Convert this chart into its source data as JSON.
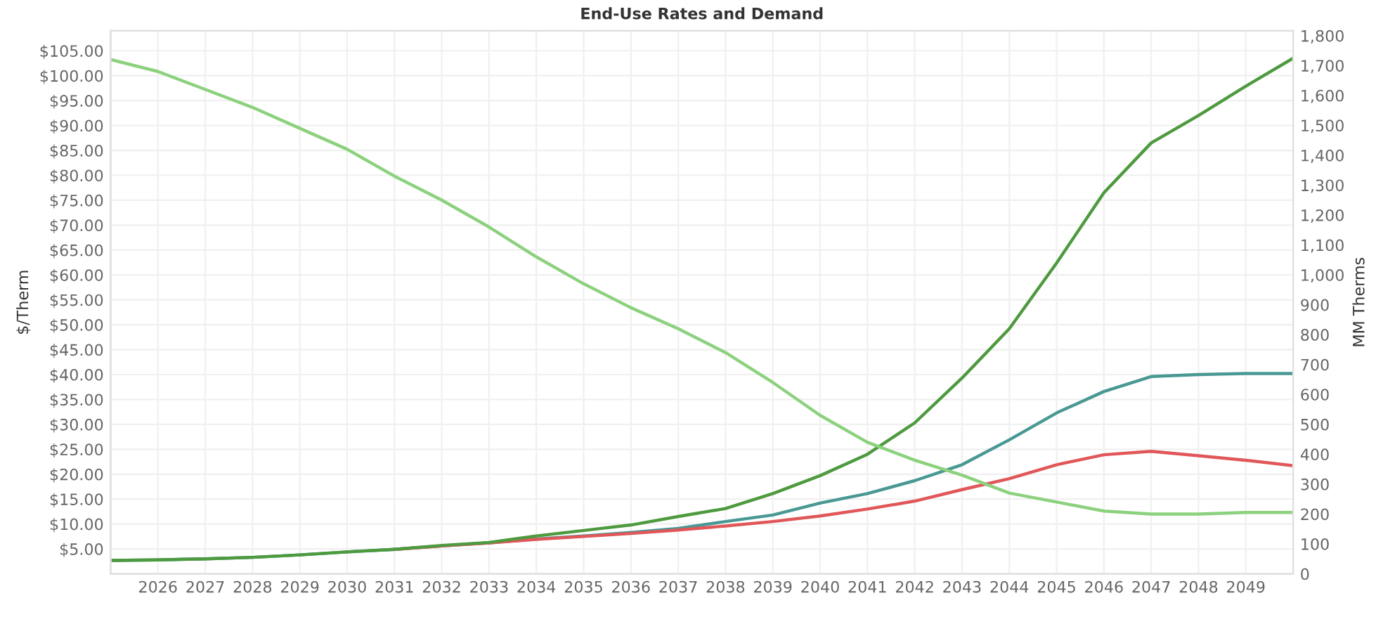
{
  "chart_data": {
    "type": "line",
    "title": "End-Use Rates and Demand",
    "ylabel": "$/Therm",
    "y2label": "MM Therms",
    "x": [
      2025,
      2026,
      2027,
      2028,
      2029,
      2030,
      2031,
      2032,
      2033,
      2034,
      2035,
      2036,
      2037,
      2038,
      2039,
      2040,
      2041,
      2042,
      2043,
      2044,
      2045,
      2046,
      2047,
      2048,
      2049,
      2050
    ],
    "xlim": [
      2025,
      2050
    ],
    "xticks": [
      2026,
      2027,
      2028,
      2029,
      2030,
      2031,
      2032,
      2033,
      2034,
      2035,
      2036,
      2037,
      2038,
      2039,
      2040,
      2041,
      2042,
      2043,
      2044,
      2045,
      2046,
      2047,
      2048,
      2049
    ],
    "ylim": [
      0,
      109
    ],
    "yticks": [
      {
        "value": 5,
        "label": "$5.00"
      },
      {
        "value": 10,
        "label": "$10.00"
      },
      {
        "value": 15,
        "label": "$15.00"
      },
      {
        "value": 20,
        "label": "$20.00"
      },
      {
        "value": 25,
        "label": "$25.00"
      },
      {
        "value": 30,
        "label": "$30.00"
      },
      {
        "value": 35,
        "label": "$35.00"
      },
      {
        "value": 40,
        "label": "$40.00"
      },
      {
        "value": 45,
        "label": "$45.00"
      },
      {
        "value": 50,
        "label": "$50.00"
      },
      {
        "value": 55,
        "label": "$55.00"
      },
      {
        "value": 60,
        "label": "$60.00"
      },
      {
        "value": 65,
        "label": "$65.00"
      },
      {
        "value": 70,
        "label": "$70.00"
      },
      {
        "value": 75,
        "label": "$75.00"
      },
      {
        "value": 80,
        "label": "$80.00"
      },
      {
        "value": 85,
        "label": "$85.00"
      },
      {
        "value": 90,
        "label": "$90.00"
      },
      {
        "value": 95,
        "label": "$95.00"
      },
      {
        "value": 100,
        "label": "$100.00"
      },
      {
        "value": 105,
        "label": "$105.00"
      }
    ],
    "y2lim": [
      0,
      1816
    ],
    "y2ticks": [
      0,
      100,
      200,
      300,
      400,
      500,
      600,
      700,
      800,
      900,
      {
        "value": 1000,
        "label": "1,000"
      },
      {
        "value": 1100,
        "label": "1,100"
      },
      {
        "value": 1200,
        "label": "1,200"
      },
      {
        "value": 1300,
        "label": "1,300"
      },
      {
        "value": 1400,
        "label": "1,400"
      },
      {
        "value": 1500,
        "label": "1,500"
      },
      {
        "value": 1600,
        "label": "1,600"
      },
      {
        "value": 1700,
        "label": "1,700"
      },
      {
        "value": 1800,
        "label": "1,800"
      }
    ],
    "grid": true,
    "series": [
      {
        "color": "#8cd17d",
        "axis": "y2",
        "values": [
          1720,
          1680,
          1620,
          1560,
          1490,
          1420,
          1330,
          1250,
          1160,
          1060,
          970,
          890,
          820,
          740,
          640,
          530,
          440,
          380,
          330,
          270,
          240,
          210,
          200,
          200,
          205,
          205
        ]
      },
      {
        "color": "#499894",
        "values": [
          2.7,
          2.8,
          3.0,
          3.3,
          3.8,
          4.4,
          4.9,
          5.6,
          6.2,
          7.0,
          7.6,
          8.3,
          9.1,
          10.5,
          11.8,
          14.2,
          16.1,
          18.7,
          21.9,
          26.9,
          32.3,
          36.6,
          39.6,
          40.0,
          40.2,
          40.2
        ]
      },
      {
        "color": "#e15759",
        "values": [
          null,
          null,
          null,
          null,
          null,
          null,
          4.9,
          5.6,
          6.2,
          6.9,
          7.5,
          8.1,
          8.8,
          9.6,
          10.5,
          11.6,
          13.0,
          14.6,
          16.9,
          19.1,
          21.9,
          23.9,
          24.6,
          23.7,
          22.8,
          21.7
        ]
      },
      {
        "color": "#4e9a3f",
        "values": [
          2.7,
          2.8,
          3.0,
          3.3,
          3.8,
          4.4,
          4.9,
          5.7,
          6.3,
          7.6,
          8.7,
          9.8,
          11.5,
          13.1,
          16.1,
          19.7,
          24.0,
          30.3,
          39.3,
          49.2,
          62.4,
          76.5,
          86.5,
          92.0,
          97.9,
          103.5
        ]
      }
    ]
  }
}
